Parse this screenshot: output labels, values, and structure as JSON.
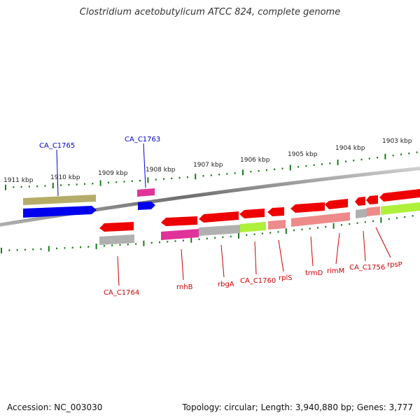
{
  "title": "Clostridium acetobutylicum ATCC 824, complete genome",
  "accession": "Accession: NC_003030",
  "summary": "Topology: circular; Length: 3,940,880 bp; Genes: 3,777",
  "scale_labels": [
    "1911 kbp",
    "1910 kbp",
    "1909 kbp",
    "1908 kbp",
    "1907 kbp",
    "1906 kbp",
    "1905 kbp",
    "1904 kbp",
    "1903 kbp"
  ],
  "gene_labels": {
    "ca_c1765": "CA_C1765",
    "ca_c1763": "CA_C1763",
    "ca_c1764": "CA_C1764",
    "rnhb": "rnhB",
    "rbga": "rbgA",
    "ca_c1760": "CA_C1760",
    "rpls": "rplS",
    "trmd": "trmD",
    "rimm": "rimM",
    "ca_c1756": "CA_C1756",
    "rpsp": "rpsP"
  },
  "colors": {
    "backbone": "#8a8a8a",
    "tick": "#1a7a1a",
    "forward_gene": "#0000ee",
    "reverse_gene": "#ee0000",
    "label_forward": "#0000cc",
    "label_reverse": "#cc0000",
    "cds_olive": "#b5ac6a",
    "cds_pink": "#e0339a",
    "cds_grey": "#b0b0b0",
    "cds_lime": "#aef03a",
    "cds_salmon": "#ee8a8a"
  }
}
